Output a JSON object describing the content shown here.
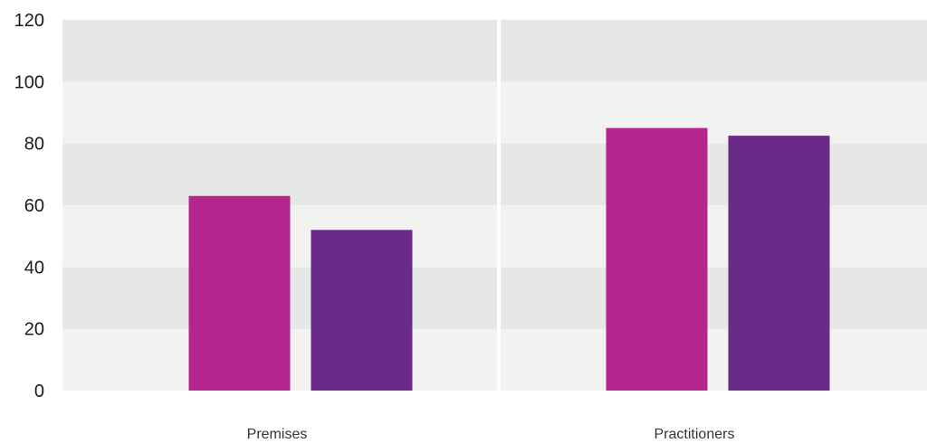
{
  "chart_data": {
    "type": "bar",
    "categories": [
      "Premises",
      "Practitioners"
    ],
    "series": [
      {
        "values": [
          63,
          85
        ],
        "color": "#b6258d"
      },
      {
        "values": [
          52,
          82.5
        ],
        "color": "#6a2a87"
      }
    ],
    "yticks": [
      "0",
      "20",
      "40",
      "60",
      "80",
      "100",
      "120"
    ],
    "ylim": [
      0,
      120
    ],
    "title": "",
    "xlabel": "",
    "ylabel": "",
    "band_colors": [
      "#f2f2f1",
      "#e6e7e7"
    ],
    "grid": false,
    "legend": "none"
  }
}
